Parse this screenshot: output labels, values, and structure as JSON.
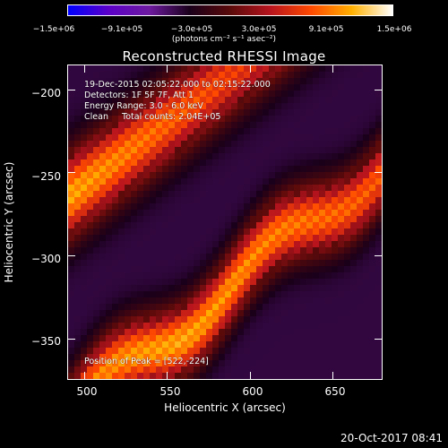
{
  "colorbar": {
    "tick_labels": [
      "−1.5e+06",
      "−9.1e+05",
      "−3.0e+05",
      "3.0e+05",
      "9.1e+05",
      "1.5e+06"
    ],
    "units_label": "(photons cm⁻² s⁻¹ asec⁻²)",
    "range": [
      -1500000,
      1500000
    ],
    "colors": [
      "#0000ff",
      "#5b00c8",
      "#6e1aa0",
      "#1a001a",
      "#5a0a0a",
      "#b8141e",
      "#ff4a00",
      "#ffb000",
      "#ffffff"
    ]
  },
  "chart_data": {
    "type": "heatmap",
    "title": "Reconstructed RHESSI Image",
    "xlabel": "Heliocentric X (arcsec)",
    "ylabel": "Heliocentric Y (arcsec)",
    "xlim": [
      490,
      680
    ],
    "ylim": [
      -375,
      -185
    ],
    "x_ticks": [
      500,
      550,
      600,
      650
    ],
    "y_ticks": [
      -200,
      -250,
      -300,
      -350
    ],
    "x_tick_labels": [
      "500",
      "550",
      "600",
      "650"
    ],
    "y_tick_labels": [
      "−200",
      "−250",
      "−300",
      "−350"
    ],
    "annotations": {
      "time": "19-Dec-2015 02:05:22.000 to 02:15:22.000",
      "detectors": "Detectors: 1F 5F 7F, Att 1",
      "energy": "Energy Range: 3.0 - 6.0 keV",
      "clean": "Clean     Total counts: 2.04E+05",
      "peak": "Position of Peak = [522,-224]"
    },
    "peak_position": [
      522,
      -224
    ],
    "total_counts": "2.04E+05",
    "energy_range_keV": [
      3.0,
      6.0
    ]
  },
  "footer": {
    "timestamp": "20-Oct-2017 08:41"
  }
}
